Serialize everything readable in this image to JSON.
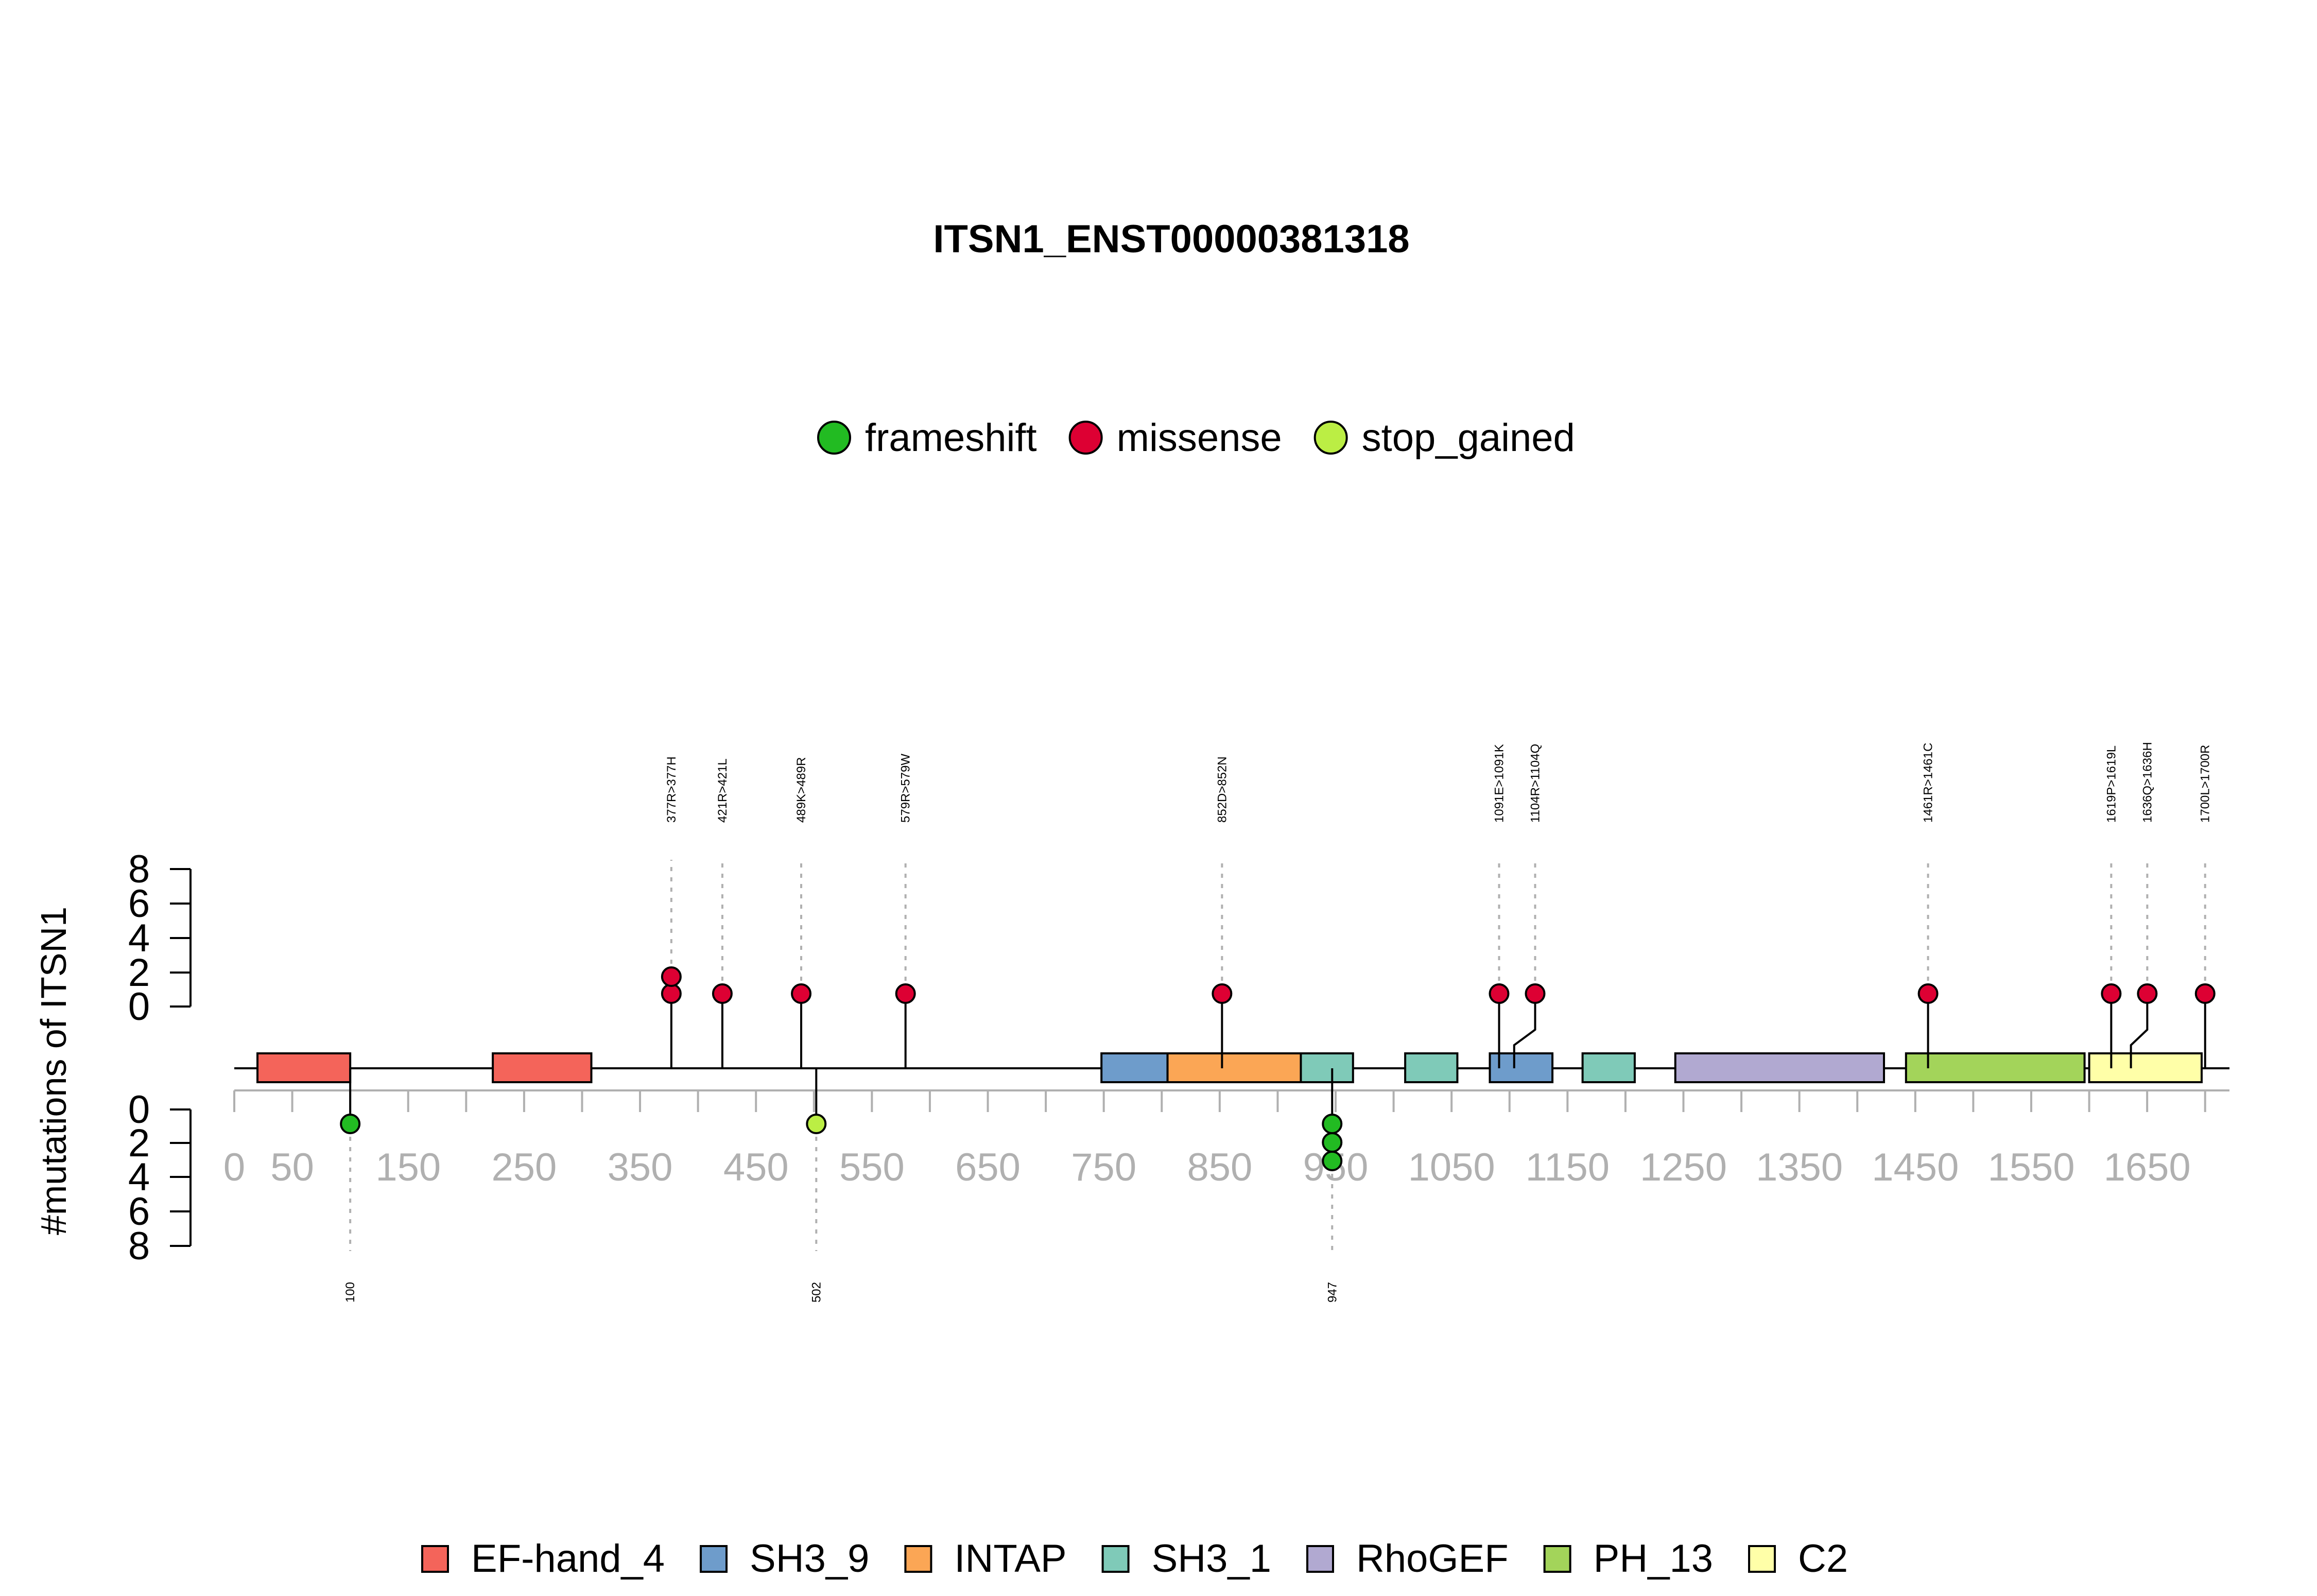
{
  "chart_data": {
    "type": "lollipop",
    "title": "ITSN1_ENST00000381318",
    "ylabel": "#mutations of ITSN1",
    "protein_length": 1721,
    "x_ticks": [
      0,
      50,
      150,
      250,
      350,
      450,
      550,
      650,
      750,
      850,
      950,
      1050,
      1150,
      1250,
      1350,
      1450,
      1550,
      1650
    ],
    "x_tick_labels": [
      "0",
      "50",
      "150",
      "250",
      "350",
      "450",
      "550",
      "650",
      "750",
      "850",
      "950",
      "1050",
      "1150",
      "1250",
      "1350",
      "1450",
      "1550",
      "1650"
    ],
    "y_ticks_top": [
      "0",
      "2",
      "4",
      "6",
      "8"
    ],
    "y_ticks_bottom": [
      "0",
      "2",
      "4",
      "6",
      "8"
    ],
    "legend_mutations": [
      {
        "name": "frameshift",
        "color": "#22bb22"
      },
      {
        "name": "missense",
        "color": "#dd0033"
      },
      {
        "name": "stop_gained",
        "color": "#bbee44"
      }
    ],
    "domains": [
      {
        "name": "EF-hand_4",
        "start": 20,
        "end": 100,
        "color": "#f4645a"
      },
      {
        "name": "EF-hand_4",
        "start": 223,
        "end": 308,
        "color": "#f4645a"
      },
      {
        "name": "SH3_9",
        "start": 748,
        "end": 805,
        "color": "#6e9ccb"
      },
      {
        "name": "INTAP",
        "start": 805,
        "end": 920,
        "color": "#fba655"
      },
      {
        "name": "SH3_1",
        "start": 920,
        "end": 965,
        "color": "#7fcab8"
      },
      {
        "name": "SH3_1",
        "start": 1010,
        "end": 1055,
        "color": "#7fcab8"
      },
      {
        "name": "SH3_9",
        "start": 1083,
        "end": 1137,
        "color": "#6e9ccb"
      },
      {
        "name": "SH3_1",
        "start": 1163,
        "end": 1208,
        "color": "#7fcab8"
      },
      {
        "name": "RhoGEF",
        "start": 1243,
        "end": 1423,
        "color": "#b1a9d1"
      },
      {
        "name": "PH_13",
        "start": 1442,
        "end": 1596,
        "color": "#a3d45a"
      },
      {
        "name": "C2",
        "start": 1600,
        "end": 1697,
        "color": "#ffffa8"
      }
    ],
    "legend_domains": [
      {
        "name": "EF-hand_4",
        "color": "#f4645a"
      },
      {
        "name": "SH3_9",
        "color": "#6e9ccb"
      },
      {
        "name": "INTAP",
        "color": "#fba655"
      },
      {
        "name": "SH3_1",
        "color": "#7fcab8"
      },
      {
        "name": "RhoGEF",
        "color": "#b1a9d1"
      },
      {
        "name": "PH_13",
        "color": "#a3d45a"
      },
      {
        "name": "C2",
        "color": "#ffffa8"
      }
    ],
    "mutations_top": [
      {
        "pos": 377,
        "label": "377R>377H",
        "type": "missense",
        "count": 2
      },
      {
        "pos": 421,
        "label": "421R>421L",
        "type": "missense",
        "count": 1
      },
      {
        "pos": 489,
        "label": "489K>489R",
        "type": "missense",
        "count": 1
      },
      {
        "pos": 579,
        "label": "579R>579W",
        "type": "missense",
        "count": 1
      },
      {
        "pos": 852,
        "label": "852D>852N",
        "type": "missense",
        "count": 1
      },
      {
        "pos": 1091,
        "label": "1091E>1091K",
        "type": "missense",
        "count": 1
      },
      {
        "pos": 1104,
        "label": "1104R>1104Q",
        "type": "missense",
        "count": 1
      },
      {
        "pos": 1461,
        "label": "1461R>1461C",
        "type": "missense",
        "count": 1
      },
      {
        "pos": 1619,
        "label": "1619P>1619L",
        "type": "missense",
        "count": 1
      },
      {
        "pos": 1636,
        "label": "1636Q>1636H",
        "type": "missense",
        "count": 1
      },
      {
        "pos": 1700,
        "label": "1700L>1700R",
        "type": "missense",
        "count": 1
      }
    ],
    "mutations_bottom": [
      {
        "pos": 100,
        "label": "100",
        "type": "frameshift",
        "count": 1
      },
      {
        "pos": 502,
        "label": "502",
        "type": "stop_gained",
        "count": 1
      },
      {
        "pos": 947,
        "label": "947",
        "type": "frameshift",
        "count": 3
      }
    ]
  }
}
